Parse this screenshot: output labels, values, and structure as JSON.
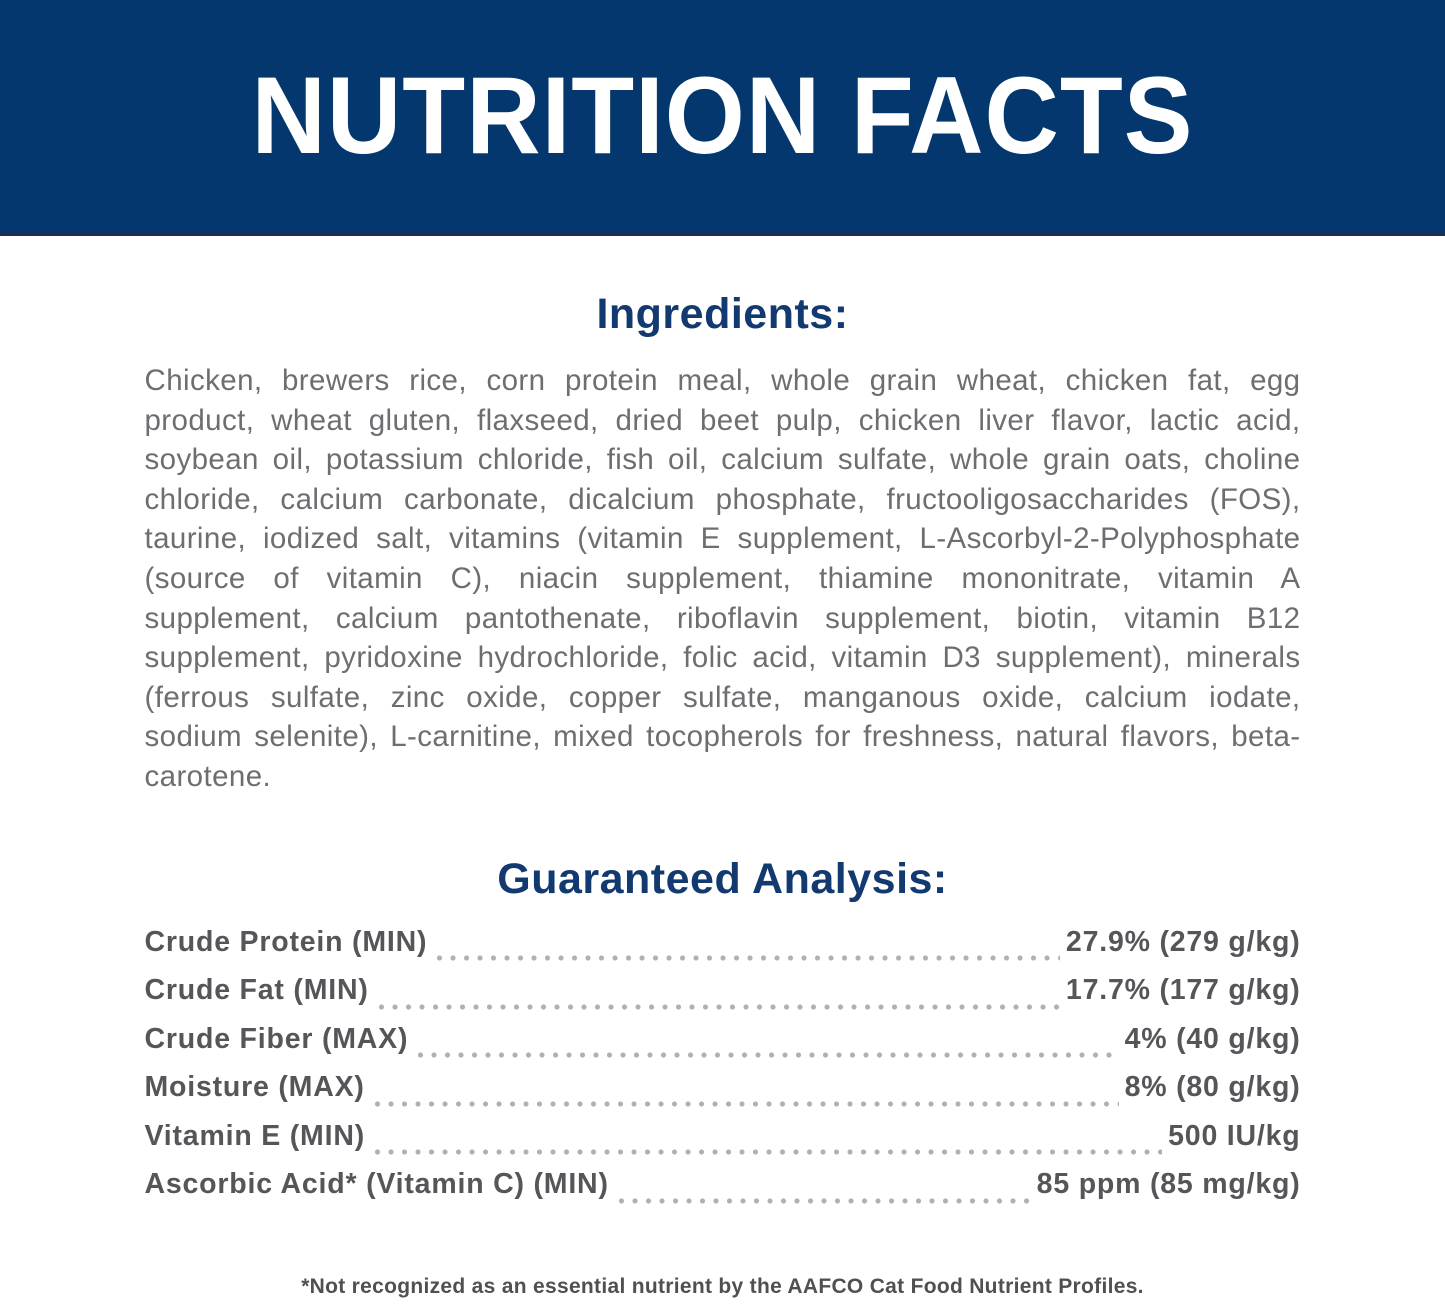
{
  "header": {
    "title": "NUTRITION FACTS"
  },
  "ingredients": {
    "heading": "Ingredients:",
    "text": "Chicken, brewers rice, corn protein meal, whole grain wheat, chicken fat, egg product, wheat gluten, flaxseed, dried beet pulp, chicken liver flavor, lactic acid, soybean oil, potassium chloride, fish oil, calcium sulfate, whole grain oats, choline chloride, calcium carbonate, dicalcium phosphate, fructooligosaccharides (FOS), taurine, iodized salt, vitamins (vitamin E supplement, L-Ascorbyl-2-Polyphosphate (source of vitamin C), niacin supplement, thiamine mononitrate, vitamin A supplement, calcium pantothenate, riboflavin supplement, biotin, vitamin B12 supplement, pyridoxine hydrochloride, folic acid, vitamin D3 supplement), minerals (ferrous sulfate, zinc oxide, copper sulfate, manganous oxide, calcium iodate, sodium selenite), L-carnitine, mixed tocopherols for freshness, natural flavors, beta-carotene."
  },
  "guaranteed_analysis": {
    "heading": "Guaranteed Analysis:",
    "rows": [
      {
        "label": "Crude Protein (MIN)",
        "value": "27.9% (279 g/kg)"
      },
      {
        "label": "Crude Fat (MIN)",
        "value": "17.7% (177 g/kg)"
      },
      {
        "label": "Crude Fiber (MAX)",
        "value": "4% (40 g/kg)"
      },
      {
        "label": "Moisture (MAX)",
        "value": "8% (80 g/kg)"
      },
      {
        "label": "Vitamin E (MIN)",
        "value": "500 IU/kg"
      },
      {
        "label": "Ascorbic Acid* (Vitamin C) (MIN)",
        "value": "85 ppm (85 mg/kg)"
      }
    ]
  },
  "footnote": "*Not recognized as an essential nutrient by the AAFCO Cat Food Nutrient Profiles.",
  "colors": {
    "banner_navy": "#04376d",
    "banner_edge": "#16305a",
    "heading_blue": "#133a70",
    "body_gray": "#6d6e71",
    "row_gray": "#545659",
    "dot_gray": "#aeb0b3",
    "footnote_gray": "#4f5052"
  }
}
